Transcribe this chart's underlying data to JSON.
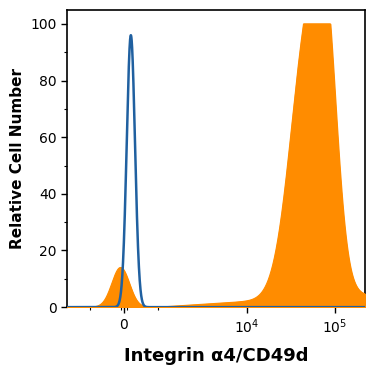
{
  "title": "",
  "xlabel": "Integrin α4/CD49d",
  "ylabel": "Relative Cell Number",
  "ylim": [
    0,
    105
  ],
  "yticks": [
    0,
    20,
    40,
    60,
    80,
    100
  ],
  "orange_color": "#FF8C00",
  "blue_color": "#2060A0",
  "background_color": "#FFFFFF",
  "xlabel_fontsize": 13,
  "ylabel_fontsize": 11,
  "tick_fontsize": 10
}
